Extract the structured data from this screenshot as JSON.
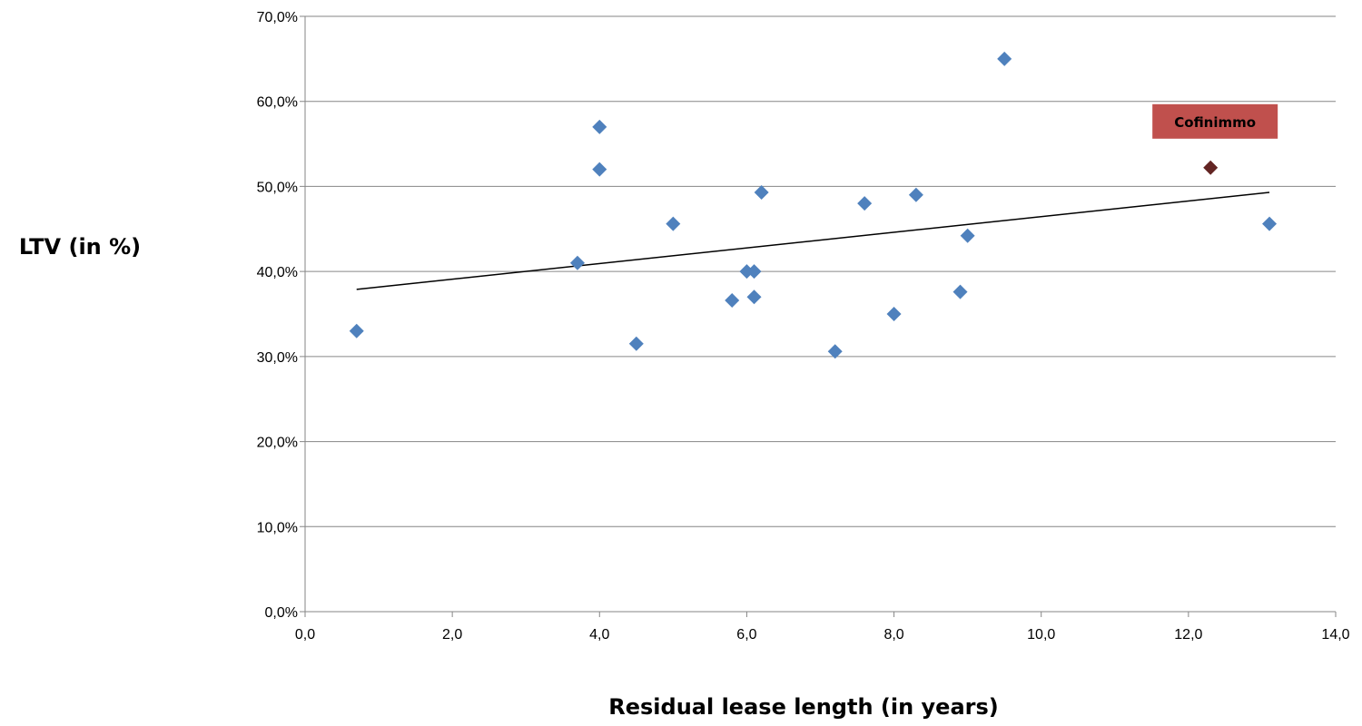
{
  "chart_data": {
    "type": "scatter",
    "xlabel": "Residual lease length (in years)",
    "ylabel": "LTV (in %)",
    "xlim": [
      0,
      14
    ],
    "ylim": [
      0,
      70
    ],
    "x_ticks": [
      "0,0",
      "2,0",
      "4,0",
      "6,0",
      "8,0",
      "10,0",
      "12,0",
      "14,0"
    ],
    "y_ticks": [
      "0,0%",
      "10,0%",
      "20,0%",
      "30,0%",
      "40,0%",
      "50,0%",
      "60,0%",
      "70,0%"
    ],
    "grid": "horizontal",
    "series": [
      {
        "color": "#4f81bd",
        "points": [
          [
            0.7,
            33.0
          ],
          [
            3.7,
            41.0
          ],
          [
            4.0,
            57.0
          ],
          [
            4.0,
            52.0
          ],
          [
            4.5,
            31.5
          ],
          [
            5.0,
            45.6
          ],
          [
            5.8,
            36.6
          ],
          [
            6.0,
            40.0
          ],
          [
            6.1,
            40.0
          ],
          [
            6.1,
            37.0
          ],
          [
            6.2,
            49.3
          ],
          [
            7.2,
            30.6
          ],
          [
            7.6,
            48.0
          ],
          [
            8.0,
            35.0
          ],
          [
            8.3,
            49.0
          ],
          [
            8.9,
            37.6
          ],
          [
            9.0,
            44.2
          ],
          [
            9.5,
            65.0
          ],
          [
            13.1,
            45.6
          ]
        ]
      },
      {
        "name": "Cofinimmo",
        "color": "#632523",
        "points": [
          [
            12.3,
            52.2
          ]
        ]
      }
    ],
    "trendline": {
      "type": "linear",
      "from": [
        0.7,
        37.9
      ],
      "to": [
        13.1,
        49.3
      ],
      "color": "#000000"
    },
    "annotations": [
      {
        "text": "Cofinimmo",
        "background": "#c0504d",
        "point": [
          12.3,
          52.2
        ]
      }
    ]
  }
}
